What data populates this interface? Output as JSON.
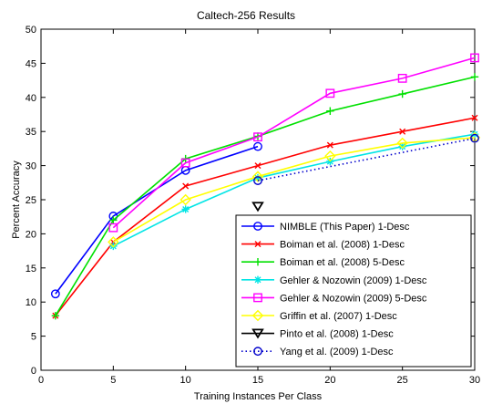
{
  "chart_data": {
    "type": "line",
    "title": "Caltech-256 Results",
    "xlabel": "Training Instances Per Class",
    "ylabel": "Percent Accuracy",
    "xlim": [
      0,
      30
    ],
    "ylim": [
      0,
      50
    ],
    "xticks": [
      0,
      5,
      10,
      15,
      20,
      25,
      30
    ],
    "yticks": [
      0,
      5,
      10,
      15,
      20,
      25,
      30,
      35,
      40,
      45,
      50
    ],
    "grid": false,
    "legend_position": "bottom-right",
    "series": [
      {
        "name": "NIMBLE (This Paper) 1-Desc",
        "color": "#0000ff",
        "marker": "circle",
        "dash": "solid",
        "x": [
          1,
          5,
          10,
          15
        ],
        "y": [
          11.2,
          22.6,
          29.3,
          32.8
        ]
      },
      {
        "name": "Boiman et al. (2008) 1-Desc",
        "color": "#ff0000",
        "marker": "x",
        "dash": "solid",
        "x": [
          1,
          5,
          10,
          15,
          20,
          25,
          30
        ],
        "y": [
          8.0,
          18.8,
          27.0,
          30.0,
          33.0,
          35.0,
          37.0
        ]
      },
      {
        "name": "Boiman et al. (2008) 5-Desc",
        "color": "#00e000",
        "marker": "plus",
        "dash": "solid",
        "x": [
          1,
          5,
          10,
          15,
          20,
          25,
          30
        ],
        "y": [
          8.0,
          22.0,
          31.0,
          34.3,
          38.0,
          40.5,
          43.0
        ]
      },
      {
        "name": "Gehler & Nozowin (2009) 1-Desc",
        "color": "#00e5e5",
        "marker": "star",
        "dash": "solid",
        "x": [
          5,
          10,
          15,
          20,
          25,
          30
        ],
        "y": [
          18.2,
          23.6,
          28.2,
          30.6,
          32.8,
          34.6
        ]
      },
      {
        "name": "Gehler & Nozowin (2009) 5-Desc",
        "color": "#ff00ff",
        "marker": "square",
        "dash": "solid",
        "x": [
          5,
          10,
          15,
          20,
          25,
          30
        ],
        "y": [
          20.9,
          30.4,
          34.2,
          40.6,
          42.8,
          45.8
        ]
      },
      {
        "name": "Griffin et al. (2007) 1-Desc",
        "color": "#ffff00",
        "marker": "diamond",
        "dash": "solid",
        "x": [
          5,
          10,
          15,
          20,
          25,
          30
        ],
        "y": [
          18.8,
          25.0,
          28.4,
          31.4,
          33.3,
          34.1
        ]
      },
      {
        "name": "Pinto et al. (2008) 1-Desc",
        "color": "#000000",
        "marker": "triangle-down",
        "dash": "none",
        "x": [
          15
        ],
        "y": [
          24.0
        ]
      },
      {
        "name": "Yang et al. (2009) 1-Desc",
        "color": "#0000cc",
        "marker": "circle",
        "dash": "dotted",
        "x": [
          15,
          30
        ],
        "y": [
          27.8,
          34.0
        ]
      }
    ]
  }
}
